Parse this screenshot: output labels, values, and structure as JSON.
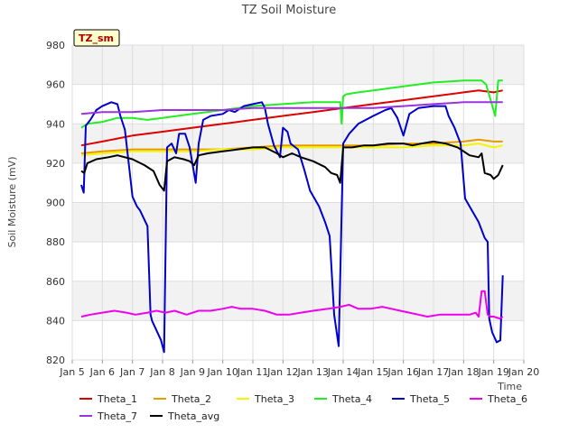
{
  "chart_data": {
    "type": "line",
    "title": "TZ Soil Moisture",
    "xlabel": "Time",
    "ylabel": "Soil Moisture (mV)",
    "badge": "TZ_sm",
    "ylim": [
      820,
      980
    ],
    "xlim": [
      5,
      20
    ],
    "yticks": [
      820,
      840,
      860,
      880,
      900,
      920,
      940,
      960,
      980
    ],
    "xticks": [
      {
        "v": 5,
        "label": "Jan 5"
      },
      {
        "v": 6,
        "label": "Jan 6"
      },
      {
        "v": 7,
        "label": "Jan 7"
      },
      {
        "v": 8,
        "label": "Jan 8"
      },
      {
        "v": 9,
        "label": "Jan 9"
      },
      {
        "v": 10,
        "label": "Jan 10"
      },
      {
        "v": 11,
        "label": "Jan 11"
      },
      {
        "v": 12,
        "label": "Jan 12"
      },
      {
        "v": 13,
        "label": "Jan 13"
      },
      {
        "v": 14,
        "label": "Jan 14"
      },
      {
        "v": 15,
        "label": "Jan 15"
      },
      {
        "v": 16,
        "label": "Jan 16"
      },
      {
        "v": 17,
        "label": "Jan 17"
      },
      {
        "v": 18,
        "label": "Jan 18"
      },
      {
        "v": 19,
        "label": "Jan 19"
      },
      {
        "v": 20,
        "label": "Jan 20"
      }
    ],
    "colors": {
      "Theta_1": "#dd0000",
      "Theta_2": "#e69b00",
      "Theta_3": "#f5f500",
      "Theta_4": "#22ee22",
      "Theta_5": "#0000cc",
      "Theta_6": "#ee00ee",
      "Theta_7": "#9933dd",
      "Theta_avg": "#000000"
    },
    "legend": [
      "Theta_1",
      "Theta_2",
      "Theta_3",
      "Theta_4",
      "Theta_5",
      "Theta_6",
      "Theta_7",
      "Theta_avg"
    ],
    "series": [
      {
        "name": "Theta_1",
        "x": [
          5.3,
          6,
          7,
          8,
          9,
          10,
          11,
          12,
          13,
          14,
          15,
          16,
          17,
          18,
          18.5,
          19,
          19.3
        ],
        "y": [
          929,
          931,
          934,
          936,
          938,
          940,
          942,
          944,
          946,
          948,
          950,
          952,
          954,
          956,
          957,
          956,
          957
        ]
      },
      {
        "name": "Theta_2",
        "x": [
          5.3,
          6,
          7,
          8,
          9,
          10,
          11,
          12,
          13,
          14,
          15,
          16,
          17,
          18,
          18.5,
          19,
          19.3
        ],
        "y": [
          925,
          926,
          927,
          927,
          927,
          927,
          928,
          929,
          929,
          929,
          929,
          930,
          930,
          931,
          932,
          931,
          931
        ]
      },
      {
        "name": "Theta_3",
        "x": [
          5.3,
          6,
          7,
          8,
          9,
          10,
          11,
          12,
          13,
          14,
          15,
          16,
          17,
          18,
          18.5,
          19,
          19.3
        ],
        "y": [
          924,
          925,
          926,
          926,
          926,
          927,
          927,
          928,
          928,
          928,
          928,
          928,
          929,
          929,
          930,
          928,
          929
        ]
      },
      {
        "name": "Theta_4",
        "x": [
          5.3,
          5.5,
          6,
          6.5,
          7,
          7.5,
          8,
          8.5,
          9,
          10,
          11,
          12,
          13,
          13.9,
          13.95,
          14.0,
          14.1,
          14.5,
          15,
          16,
          17,
          18,
          18.6,
          18.75,
          18.9,
          19.05,
          19.15,
          19.3
        ],
        "y": [
          938,
          940,
          941,
          943,
          943,
          942,
          943,
          944,
          945,
          947,
          949,
          950,
          951,
          951,
          940,
          954,
          955,
          956,
          957,
          959,
          961,
          962,
          962,
          960,
          952,
          944,
          962,
          962
        ]
      },
      {
        "name": "Theta_5",
        "x": [
          5.3,
          5.38,
          5.45,
          5.6,
          5.8,
          6.0,
          6.3,
          6.5,
          6.6,
          6.75,
          7.0,
          7.15,
          7.25,
          7.5,
          7.6,
          7.65,
          7.8,
          7.95,
          8.05,
          8.15,
          8.3,
          8.45,
          8.55,
          8.75,
          8.9,
          9.1,
          9.2,
          9.35,
          9.6,
          10.0,
          10.2,
          10.4,
          10.7,
          11.0,
          11.3,
          11.4,
          11.5,
          11.7,
          11.9,
          12.0,
          12.15,
          12.25,
          12.5,
          12.7,
          12.9,
          13.2,
          13.4,
          13.55,
          13.7,
          13.85,
          14.0,
          14.2,
          14.5,
          15.0,
          15.4,
          15.6,
          15.8,
          16.0,
          16.2,
          16.5,
          17.0,
          17.4,
          17.5,
          17.7,
          17.9,
          18.05,
          18.2,
          18.5,
          18.7,
          18.8,
          18.85,
          18.95,
          19.1,
          19.22,
          19.3
        ],
        "y": [
          909,
          905,
          939,
          942,
          947,
          949,
          951,
          950,
          944,
          937,
          903,
          898,
          896,
          888,
          843,
          840,
          835,
          830,
          824,
          928,
          930,
          925,
          935,
          935,
          928,
          910,
          930,
          942,
          944,
          945,
          947,
          946,
          949,
          950,
          951,
          948,
          940,
          929,
          923,
          938,
          936,
          930,
          927,
          917,
          906,
          898,
          890,
          883,
          843,
          827,
          930,
          935,
          940,
          944,
          947,
          948,
          943,
          934,
          945,
          948,
          949,
          949,
          944,
          938,
          930,
          902,
          898,
          890,
          882,
          880,
          841,
          834,
          829,
          830,
          863
        ]
      },
      {
        "name": "Theta_6",
        "x": [
          5.3,
          5.6,
          6.0,
          6.4,
          6.8,
          7.1,
          7.5,
          7.8,
          8.1,
          8.4,
          8.8,
          9.2,
          9.6,
          10.0,
          10.3,
          10.6,
          11.0,
          11.4,
          11.8,
          12.2,
          12.6,
          13.0,
          13.5,
          13.9,
          14.2,
          14.5,
          14.9,
          15.3,
          15.6,
          15.9,
          16.2,
          16.5,
          16.8,
          17.2,
          17.6,
          17.9,
          18.2,
          18.4,
          18.5,
          18.6,
          18.7,
          18.8,
          18.9,
          19.0,
          19.2,
          19.3
        ],
        "y": [
          842,
          843,
          844,
          845,
          844,
          843,
          844,
          845,
          844,
          845,
          843,
          845,
          845,
          846,
          847,
          846,
          846,
          845,
          843,
          843,
          844,
          845,
          846,
          847,
          848,
          846,
          846,
          847,
          846,
          845,
          844,
          843,
          842,
          843,
          843,
          843,
          843,
          844,
          842,
          855,
          855,
          843,
          842,
          842,
          841,
          842
        ]
      },
      {
        "name": "Theta_7",
        "x": [
          5.3,
          6,
          7,
          8,
          9,
          10,
          11,
          12,
          13,
          14,
          15,
          16,
          17,
          18,
          19,
          19.3
        ],
        "y": [
          945,
          946,
          946,
          947,
          947,
          947,
          948,
          948,
          948,
          948,
          948,
          949,
          950,
          951,
          951,
          951
        ]
      },
      {
        "name": "Theta_avg",
        "x": [
          5.3,
          5.4,
          5.5,
          5.8,
          6.2,
          6.5,
          7.0,
          7.4,
          7.7,
          7.9,
          8.05,
          8.15,
          8.4,
          8.7,
          8.9,
          9.05,
          9.2,
          9.5,
          10.0,
          10.5,
          11.0,
          11.4,
          11.8,
          12.0,
          12.3,
          12.6,
          13.0,
          13.4,
          13.6,
          13.8,
          13.9,
          14.0,
          14.3,
          14.7,
          15.0,
          15.5,
          16.0,
          16.3,
          16.6,
          17.0,
          17.4,
          17.8,
          18.2,
          18.5,
          18.6,
          18.7,
          18.9,
          19.0,
          19.15,
          19.3
        ],
        "y": [
          916,
          915,
          920,
          922,
          923,
          924,
          922,
          919,
          916,
          909,
          906,
          921,
          923,
          922,
          921,
          919,
          924,
          925,
          926,
          927,
          928,
          928,
          925,
          923,
          925,
          923,
          921,
          918,
          915,
          914,
          910,
          928,
          928,
          929,
          929,
          930,
          930,
          929,
          930,
          931,
          930,
          928,
          924,
          923,
          925,
          915,
          914,
          912,
          914,
          919
        ]
      }
    ]
  }
}
